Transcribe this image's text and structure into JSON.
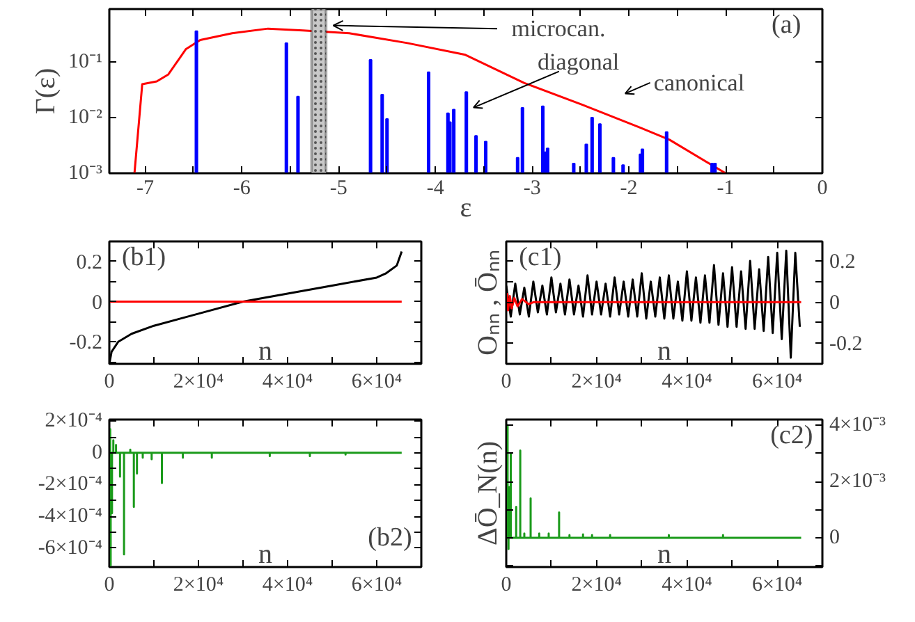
{
  "chart_data": [
    {
      "type": "line",
      "xlabel": "ε",
      "ylabel": "Γ(ε)",
      "log": "y",
      "xlim": [
        -7.37,
        0
      ],
      "ylim": [
        0.001,
        0.9
      ],
      "xticks": [
        -7,
        {
          "value": -6.5,
          "label": null
        },
        -6,
        {
          "value": -5.5,
          "label": null
        },
        -5,
        {
          "value": -4.5,
          "label": null
        },
        -4,
        {
          "value": -3.5,
          "label": null
        },
        -3,
        {
          "value": -2.5,
          "label": null
        },
        -2,
        {
          "value": -1.5,
          "label": null
        },
        -1,
        {
          "value": -0.5,
          "label": null
        },
        0
      ],
      "yticks": [
        {
          "value": 0.001,
          "label": "10⁻³"
        },
        {
          "value": 0.01,
          "label": "10⁻²"
        },
        {
          "value": 0.1,
          "label": "10⁻¹"
        }
      ],
      "series": [
        {
          "name": "canonical",
          "color": "#ff0000",
          "x": [
            -7.11,
            -7.03,
            -6.88,
            -6.76,
            -6.58,
            -6.43,
            -6.1,
            -5.73,
            -5.37,
            -4.89,
            -4.29,
            -3.69,
            -3.08,
            -2.48,
            -1.88,
            -1.58,
            -1.0
          ],
          "values": [
            0.001,
            0.04,
            0.045,
            0.06,
            0.17,
            0.25,
            0.33,
            0.4,
            0.37,
            0.33,
            0.22,
            0.135,
            0.042,
            0.017,
            0.0066,
            0.004,
            0.001
          ]
        },
        {
          "name": "diagonal",
          "type": "bar",
          "color": "#0000ff",
          "x": [
            -6.47,
            -5.54,
            -5.42,
            -4.67,
            -4.55,
            -4.5,
            -4.07,
            -3.87,
            -3.85,
            -3.81,
            -3.68,
            -3.58,
            -3.48,
            -3.15,
            -3.1,
            -2.89,
            -2.86,
            -2.84,
            -2.57,
            -2.44,
            -2.38,
            -2.3,
            -2.16,
            -2.06,
            -1.88,
            -1.86,
            -1.61,
            -1.14,
            -1.11
          ],
          "values": [
            0.36,
            0.22,
            0.024,
            0.11,
            0.026,
            0.0095,
            0.066,
            0.012,
            0.0083,
            0.014,
            0.029,
            0.0047,
            0.0037,
            0.0019,
            0.015,
            0.016,
            0.0024,
            0.0028,
            0.0015,
            0.0033,
            0.01,
            0.0077,
            0.0019,
            0.0014,
            0.0022,
            0.0027,
            0.0055,
            0.0015,
            0.0015
          ]
        }
      ],
      "bands": [
        {
          "axis": "x",
          "from": -5.28,
          "to": -5.13,
          "label": "microcan.",
          "color": "#c8c8c8"
        }
      ],
      "annotations": [
        "(a)"
      ]
    },
    {
      "type": "line",
      "xlabel": "n",
      "xlim": [
        0,
        70000
      ],
      "ylim": [
        -0.31,
        0.3
      ],
      "xticks": [
        0,
        {
          "value": 10000,
          "label": null
        },
        {
          "value": 20000,
          "label": "2×10⁴"
        },
        {
          "value": 30000,
          "label": null
        },
        {
          "value": 40000,
          "label": "4×10⁴"
        },
        {
          "value": 50000,
          "label": null
        },
        {
          "value": 60000,
          "label": "6×10⁴"
        }
      ],
      "yticks": [
        {
          "value": -0.3,
          "label": null
        },
        -0.2,
        {
          "value": -0.1,
          "label": null
        },
        0,
        {
          "value": 0.1,
          "label": null
        },
        0.2
      ],
      "series": [
        {
          "color": "#000000",
          "x": [
            0,
            500,
            2000,
            5000,
            10000,
            20000,
            30000,
            40000,
            50000,
            60000,
            62000,
            64500,
            65600
          ],
          "values": [
            -0.31,
            -0.25,
            -0.2,
            -0.16,
            -0.12,
            -0.06,
            0.0,
            0.04,
            0.08,
            0.12,
            0.14,
            0.18,
            0.25
          ]
        },
        {
          "color": "#ff0000",
          "x": [
            0,
            65600
          ],
          "values": [
            0,
            0
          ]
        }
      ],
      "annotations": [
        "(b1)"
      ]
    },
    {
      "type": "line",
      "xlabel": "n",
      "ylabel": "Oₙₙ , Ōₙₙ",
      "xlim": [
        0,
        70000
      ],
      "y2lim": [
        -0.3,
        0.295
      ],
      "xticks": [
        0,
        {
          "value": 10000,
          "label": null
        },
        {
          "value": 20000,
          "label": "2×10⁴"
        },
        {
          "value": 30000,
          "label": null
        },
        {
          "value": 40000,
          "label": "4×10⁴"
        },
        {
          "value": 50000,
          "label": null
        },
        {
          "value": 60000,
          "label": "6×10⁴"
        }
      ],
      "y2ticks": [
        -0.2,
        {
          "value": -0.1,
          "label": null
        },
        0,
        {
          "value": 0.1,
          "label": null
        },
        0.2
      ],
      "series": [
        {
          "color": "#000000",
          "axis": "y2",
          "x": [
            0,
            1000,
            2000,
            3000,
            4000,
            5000,
            6000,
            7000,
            8000,
            9000,
            10000,
            11000,
            12000,
            13000,
            14000,
            15000,
            16000,
            17000,
            18000,
            19000,
            20000,
            21000,
            22000,
            23000,
            24000,
            25000,
            26000,
            27000,
            28000,
            29000,
            30000,
            31000,
            32000,
            33000,
            34000,
            35000,
            36000,
            37000,
            38000,
            39000,
            40000,
            41000,
            42000,
            43000,
            44000,
            45000,
            46000,
            47000,
            48000,
            49000,
            50000,
            51000,
            52000,
            53000,
            54000,
            55000,
            56000,
            57000,
            58000,
            59000,
            60000,
            61000,
            62000,
            63000,
            64000,
            65000
          ],
          "values": [
            0.08,
            -0.07,
            0.09,
            -0.06,
            0.07,
            -0.07,
            0.1,
            -0.05,
            0.08,
            -0.06,
            0.12,
            -0.05,
            0.09,
            -0.06,
            0.11,
            -0.06,
            0.08,
            -0.07,
            0.13,
            -0.06,
            0.1,
            -0.06,
            0.09,
            -0.07,
            0.12,
            -0.06,
            0.1,
            -0.07,
            0.11,
            -0.07,
            0.14,
            -0.08,
            0.1,
            -0.07,
            0.12,
            -0.08,
            0.13,
            -0.08,
            0.1,
            -0.09,
            0.15,
            -0.09,
            0.12,
            -0.1,
            0.13,
            -0.1,
            0.18,
            -0.11,
            0.14,
            -0.12,
            0.17,
            -0.12,
            0.15,
            -0.13,
            0.2,
            -0.13,
            0.16,
            -0.14,
            0.22,
            -0.15,
            0.24,
            -0.18,
            0.25,
            -0.27,
            0.24,
            -0.12
          ]
        },
        {
          "color": "#ff0000",
          "axis": "y2",
          "x": [
            0,
            200,
            400,
            800,
            1200,
            1800,
            2500,
            3500,
            5000,
            6000,
            65300
          ],
          "values": [
            0,
            0.04,
            -0.04,
            0.03,
            -0.03,
            0.02,
            -0.02,
            0.015,
            -0.01,
            0,
            0
          ]
        }
      ],
      "annotations": [
        "(c1)"
      ]
    },
    {
      "type": "line",
      "xlabel": "n",
      "xlim": [
        0,
        70000
      ],
      "ylim": [
        -0.00072,
        0.00021
      ],
      "xticks": [
        0,
        {
          "value": 10000,
          "label": null
        },
        {
          "value": 20000,
          "label": "2×10⁴"
        },
        {
          "value": 30000,
          "label": null
        },
        {
          "value": 40000,
          "label": "4×10⁴"
        },
        {
          "value": 50000,
          "label": null
        },
        {
          "value": 60000,
          "label": "6×10⁴"
        }
      ],
      "yticks": [
        {
          "value": -0.0006,
          "label": "-6×10⁻⁴"
        },
        {
          "value": -0.0005,
          "label": null
        },
        {
          "value": -0.0004,
          "label": "-4×10⁻⁴"
        },
        {
          "value": -0.0003,
          "label": null
        },
        {
          "value": -0.0002,
          "label": "-2×10⁻⁴"
        },
        {
          "value": -0.0001,
          "label": null
        },
        0,
        {
          "value": 0.0001,
          "label": null
        },
        {
          "value": 0.0002,
          "label": "2×10⁻⁴"
        }
      ],
      "series": [
        {
          "color": "#1a9a1a",
          "x": [
            0,
            200,
            200,
            200,
            300,
            300,
            300,
            600,
            600,
            600,
            900,
            900,
            900,
            1500,
            1500,
            1500,
            2400,
            2400,
            2400,
            3300,
            3300,
            3300,
            4700,
            4700,
            4700,
            5500,
            5500,
            5500,
            6200,
            6200,
            6200,
            7500,
            7500,
            7500,
            9500,
            9500,
            9500,
            11800,
            11800,
            11800,
            16500,
            16500,
            16500,
            23000,
            23000,
            23000,
            36000,
            36000,
            36000,
            45000,
            45000,
            45000,
            53000,
            53000,
            53000,
            65600
          ],
          "values": [
            0,
            0,
            0.00015,
            0,
            0,
            -0.00071,
            0,
            0,
            -0.00038,
            0,
            0,
            8e-05,
            0,
            0,
            5e-05,
            0,
            0,
            -0.00015,
            0,
            0,
            -0.00064,
            0,
            0,
            2e-05,
            0,
            0,
            -0.00034,
            0,
            0,
            -0.00013,
            0,
            0,
            -3e-05,
            0,
            0,
            -4e-05,
            0,
            0,
            -0.00019,
            0,
            0,
            -3e-05,
            0,
            0,
            -3e-05,
            0,
            0,
            -2e-05,
            0,
            0,
            -2e-05,
            0,
            0,
            -1e-05,
            0,
            0
          ]
        }
      ],
      "annotations": [
        "(b2)"
      ]
    },
    {
      "type": "line",
      "xlabel": "n",
      "ylabel": "ΔŌ_N(n)",
      "xlim": [
        0,
        70000
      ],
      "y2lim": [
        -0.00104,
        0.0042
      ],
      "xticks": [
        0,
        {
          "value": 10000,
          "label": null
        },
        {
          "value": 20000,
          "label": "2×10⁴"
        },
        {
          "value": 30000,
          "label": null
        },
        {
          "value": 40000,
          "label": "4×10⁴"
        },
        {
          "value": 50000,
          "label": null
        },
        {
          "value": 60000,
          "label": "6×10⁴"
        }
      ],
      "y2ticks": [
        {
          "value": -0.001,
          "label": null
        },
        0,
        {
          "value": 0.001,
          "label": null
        },
        {
          "value": 0.002,
          "label": "2×10⁻³"
        },
        {
          "value": 0.003,
          "label": null
        },
        {
          "value": 0.004,
          "label": "4×10⁻³"
        }
      ],
      "series": [
        {
          "color": "#1a9a1a",
          "axis": "y2",
          "x": [
            0,
            300,
            300,
            300,
            500,
            500,
            500,
            700,
            700,
            700,
            1000,
            1000,
            1000,
            2200,
            2200,
            2200,
            3100,
            3100,
            3100,
            4000,
            4000,
            4000,
            5400,
            5400,
            5400,
            7300,
            7300,
            7300,
            9400,
            9400,
            9400,
            11700,
            11700,
            11700,
            14000,
            14000,
            14000,
            17000,
            17000,
            17000,
            19000,
            19000,
            19000,
            23000,
            23000,
            23000,
            36000,
            36000,
            36000,
            48000,
            48000,
            48000,
            65300
          ],
          "values": [
            0,
            0,
            0.004,
            0,
            0,
            -0.0004,
            0,
            0,
            0.0018,
            0,
            0,
            0.003,
            0,
            0,
            0.0011,
            0,
            0,
            0.0031,
            0,
            0,
            0.00015,
            0,
            0,
            0.0014,
            0,
            0,
            0.00015,
            0,
            0,
            0.00015,
            0,
            0,
            0.0009,
            0,
            0,
            0.0001,
            0,
            0,
            0.00012,
            0,
            0,
            0.0001,
            0,
            0,
            0.0001,
            0,
            0,
            0.0001,
            0,
            0,
            0.0001,
            0,
            0
          ]
        }
      ],
      "annotations": [
        "(c2)"
      ]
    }
  ]
}
